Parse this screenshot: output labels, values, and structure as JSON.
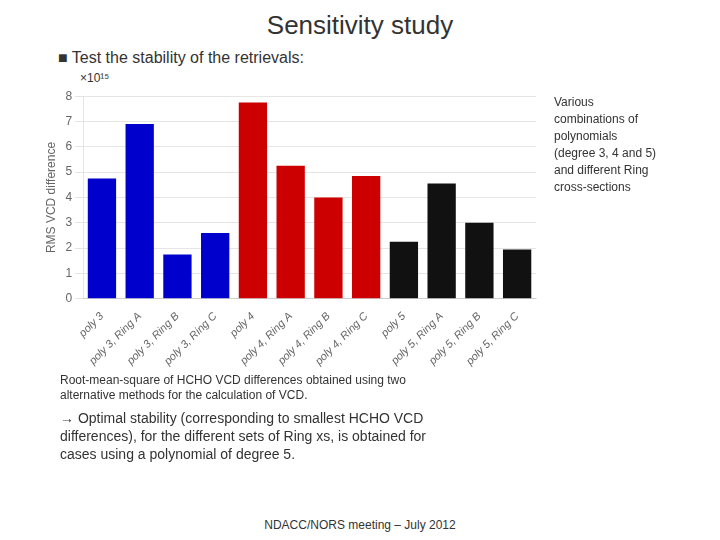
{
  "chart_data": {
    "type": "bar",
    "title": "Sensitivity study",
    "subtitle": "■ Test the stability of the retrievals:",
    "categories": [
      "poly 3",
      "poly 3, Ring A",
      "poly 3, Ring B",
      "poly 3, Ring C",
      "poly 4",
      "poly 4, Ring A",
      "poly 4, Ring B",
      "poly 4, Ring C",
      "poly 5",
      "poly 5, Ring A",
      "poly 5, Ring B",
      "poly 5, Ring C"
    ],
    "values": [
      4.75,
      6.9,
      1.75,
      2.6,
      7.75,
      5.25,
      4.0,
      4.85,
      2.25,
      4.55,
      3.0,
      1.95
    ],
    "colors": [
      "#0000cc",
      "#0000cc",
      "#0000cc",
      "#0000cc",
      "#cc0000",
      "#cc0000",
      "#cc0000",
      "#cc0000",
      "#111111",
      "#111111",
      "#111111",
      "#111111"
    ],
    "ylabel": "RMS VCD difference",
    "ylabel_multiplier": "×10¹⁵",
    "ylim": [
      0,
      8
    ],
    "yticks": [
      0,
      1,
      2,
      3,
      4,
      5,
      6,
      7,
      8
    ],
    "grid": true,
    "annotation": "Various\ncombinations of\npolynomials\n(degree 3, 4 and 5)\nand different Ring\ncross-sections",
    "footnotes": [
      "Root-mean-square of HCHO VCD differences obtained using two",
      "alternative methods for the calculation of VCD."
    ],
    "notes": [
      "→ Optimal stability (corresponding to smallest HCHO VCD",
      "differences), for the different sets of Ring xs, is obtained for",
      "cases using a polynomial of degree 5."
    ],
    "footer": "NDACC/NORS meeting – July 2012"
  }
}
